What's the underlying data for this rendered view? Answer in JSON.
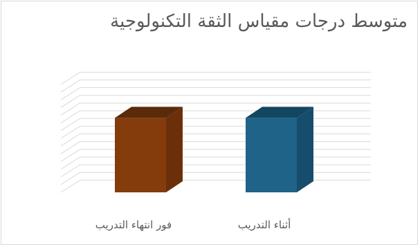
{
  "chart_data": {
    "type": "bar",
    "title": "متوسط درجات مقياس الثقة التكنولوجية",
    "categories": [
      "فور انتهاء التدريب",
      "أثناء التدريب"
    ],
    "values": [
      1,
      1
    ],
    "ylim": [
      0,
      1.45
    ],
    "grid": true,
    "three_d": true,
    "colors": {
      "bars": [
        "#843c0c",
        "#1f6388"
      ],
      "bar_tops": [
        "#5a2a0a",
        "#134660"
      ],
      "bar_sides": [
        "#6b300a",
        "#174d6c"
      ],
      "grid": "#d9d9d9"
    }
  }
}
